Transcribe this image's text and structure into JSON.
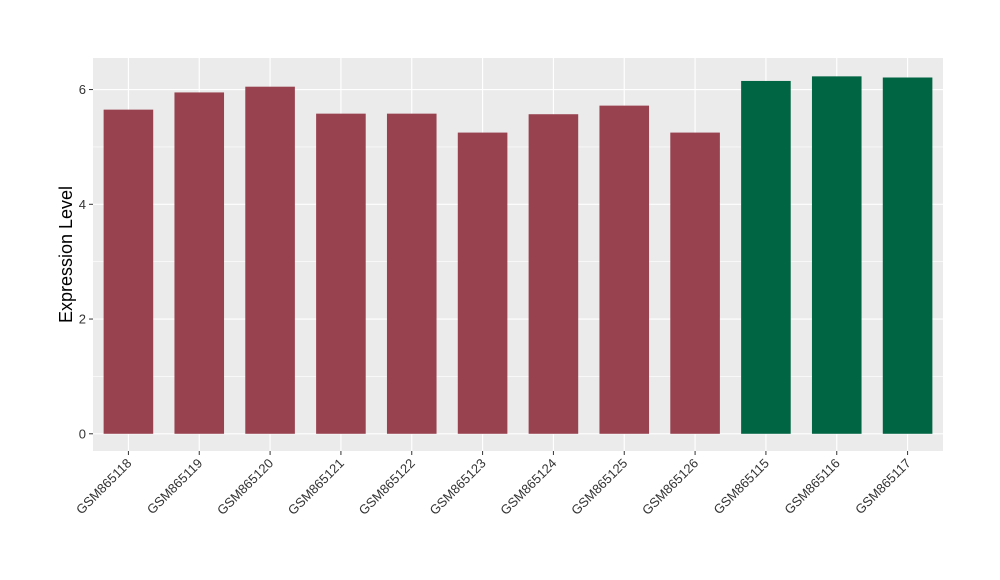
{
  "chart_data": {
    "type": "bar",
    "title": "",
    "xlabel": "",
    "ylabel": "Expression Level",
    "ylim": [
      -0.3,
      6.55
    ],
    "yticks": [
      0,
      2,
      4,
      6
    ],
    "grid": true,
    "legend": "none",
    "categories": [
      "GSM865118",
      "GSM865119",
      "GSM865120",
      "GSM865121",
      "GSM865122",
      "GSM865123",
      "GSM865124",
      "GSM865125",
      "GSM865126",
      "GSM865115",
      "GSM865116",
      "GSM865117"
    ],
    "values": [
      5.65,
      5.95,
      6.05,
      5.58,
      5.58,
      5.25,
      5.57,
      5.72,
      5.25,
      6.15,
      6.23,
      6.21
    ],
    "groups": [
      "a",
      "a",
      "a",
      "a",
      "a",
      "a",
      "a",
      "a",
      "a",
      "b",
      "b",
      "b"
    ],
    "colors": {
      "a": "#99424F",
      "b": "#006543"
    },
    "panel_background": "#EBEBEB",
    "grid_color": "#FFFFFF"
  }
}
